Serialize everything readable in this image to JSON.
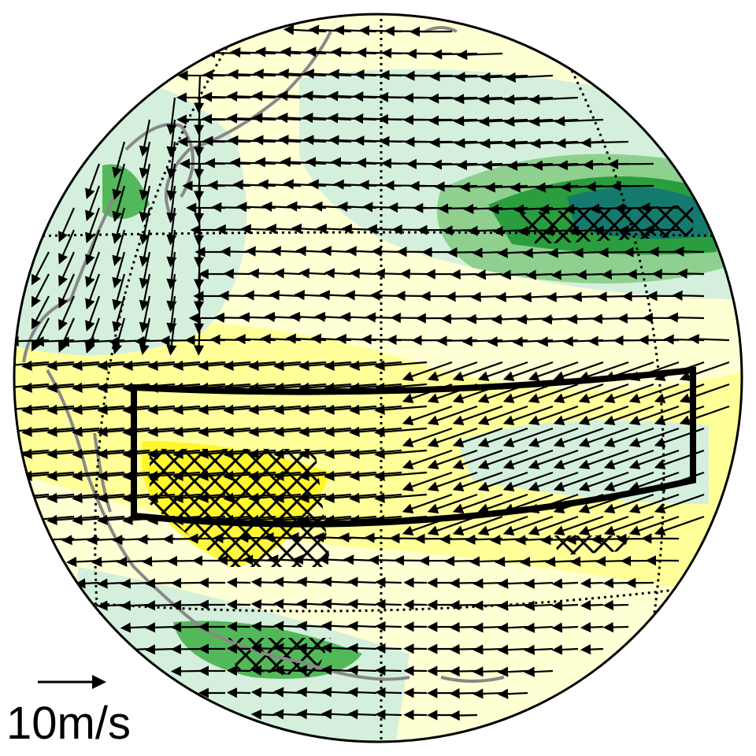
{
  "scale_label": "10m/s"
}
